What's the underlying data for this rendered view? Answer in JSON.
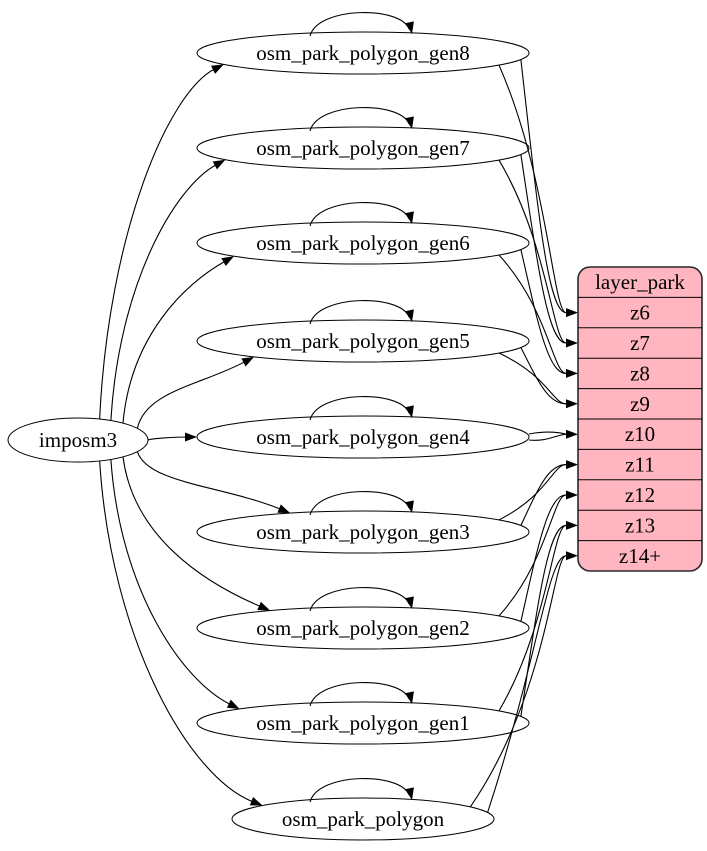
{
  "diagram": {
    "background": "#ffffff",
    "imposm": {
      "label": "imposm3"
    },
    "tables": [
      {
        "label": "osm_park_polygon_gen8"
      },
      {
        "label": "osm_park_polygon_gen7"
      },
      {
        "label": "osm_park_polygon_gen6"
      },
      {
        "label": "osm_park_polygon_gen5"
      },
      {
        "label": "osm_park_polygon_gen4"
      },
      {
        "label": "osm_park_polygon_gen3"
      },
      {
        "label": "osm_park_polygon_gen2"
      },
      {
        "label": "osm_park_polygon_gen1"
      },
      {
        "label": "osm_park_polygon"
      }
    ],
    "layer": {
      "title": "layer_park",
      "rows": [
        "z6",
        "z7",
        "z8",
        "z9",
        "z10",
        "z11",
        "z12",
        "z13",
        "z14+"
      ],
      "fill": "#FFB6C1",
      "stroke": "#2a2a2a",
      "text_color": "#000000"
    },
    "edges": {
      "color": "#000000",
      "from_imposm_to": [
        "osm_park_polygon_gen8",
        "osm_park_polygon_gen7",
        "osm_park_polygon_gen6",
        "osm_park_polygon_gen5",
        "osm_park_polygon_gen4",
        "osm_park_polygon_gen3",
        "osm_park_polygon_gen2",
        "osm_park_polygon_gen1",
        "osm_park_polygon"
      ],
      "self_loops": [
        "osm_park_polygon_gen8",
        "osm_park_polygon_gen7",
        "osm_park_polygon_gen6",
        "osm_park_polygon_gen5",
        "osm_park_polygon_gen4",
        "osm_park_polygon_gen3",
        "osm_park_polygon_gen2",
        "osm_park_polygon_gen1",
        "osm_park_polygon"
      ],
      "table_to_layer": [
        {
          "from": "osm_park_polygon_gen8",
          "to": "z6"
        },
        {
          "from": "osm_park_polygon_gen7",
          "to": "z7"
        },
        {
          "from": "osm_park_polygon_gen6",
          "to": "z8"
        },
        {
          "from": "osm_park_polygon_gen5",
          "to": "z9"
        },
        {
          "from": "osm_park_polygon_gen4",
          "to": "z10"
        },
        {
          "from": "osm_park_polygon_gen3",
          "to": "z11"
        },
        {
          "from": "osm_park_polygon_gen2",
          "to": "z12"
        },
        {
          "from": "osm_park_polygon_gen1",
          "to": "z13"
        },
        {
          "from": "osm_park_polygon",
          "to": "z14+"
        }
      ]
    }
  }
}
